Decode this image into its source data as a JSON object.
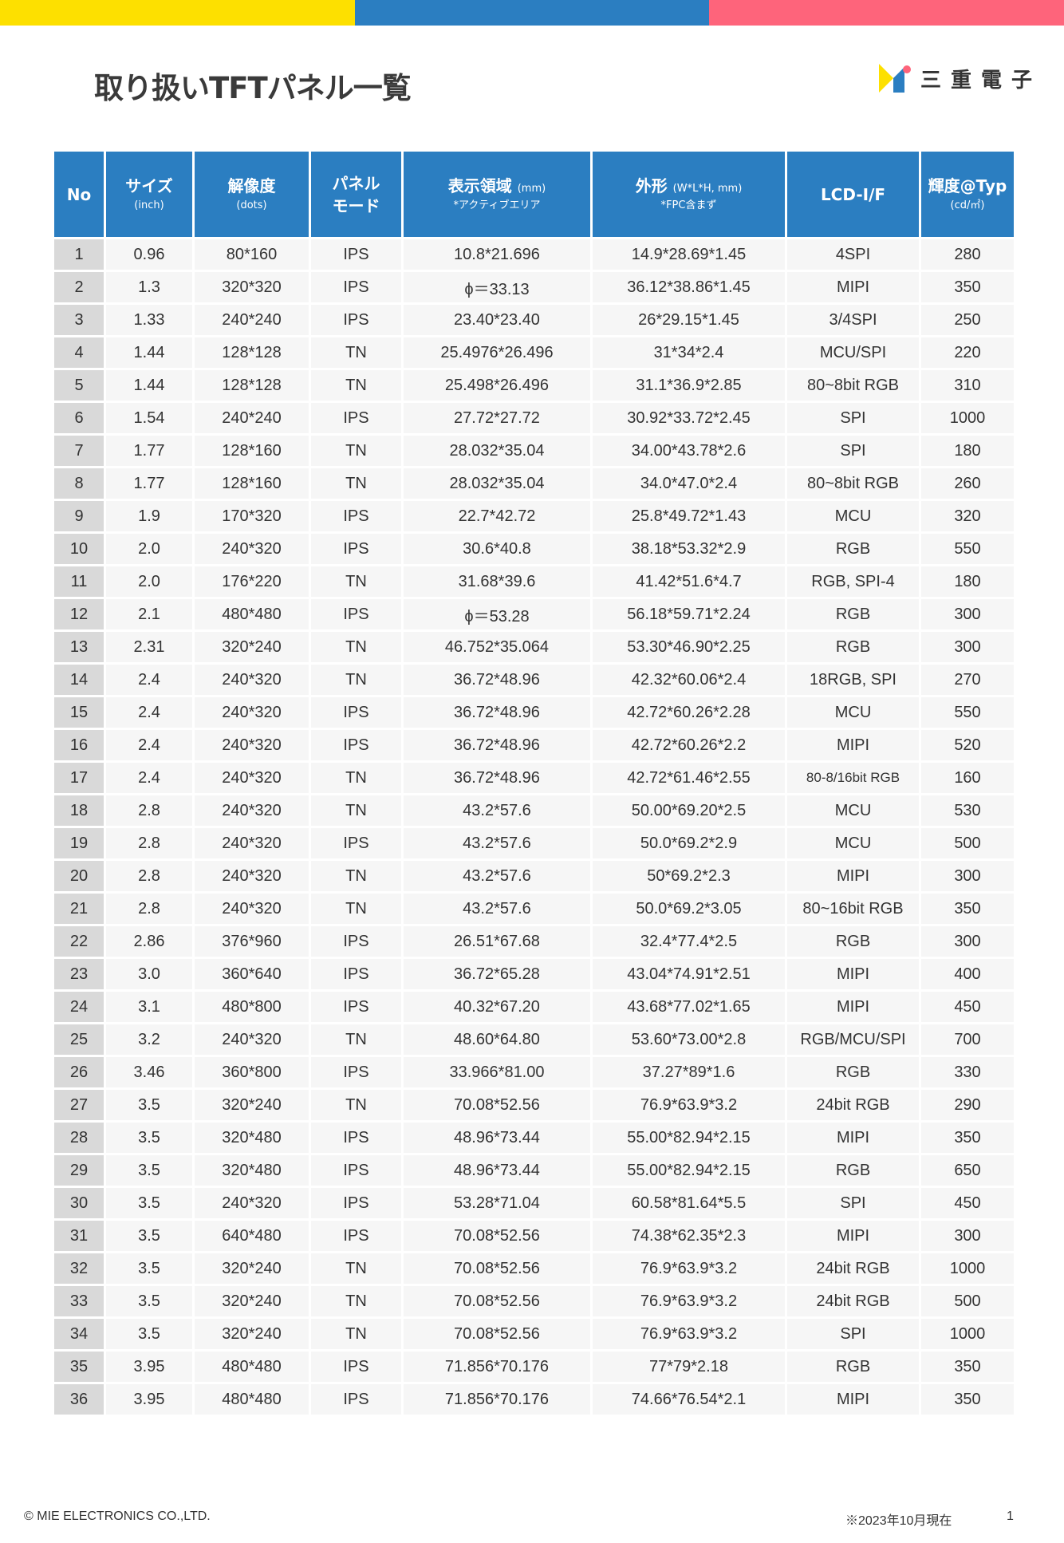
{
  "colors": {
    "yellow": "#fde000",
    "blue": "#2b7ec1",
    "pink": "#fe647b",
    "header_bg": "#2b7ec1",
    "no_col_bg": "#d9d9d9",
    "cell_bg": "#f6f6f6"
  },
  "title": "取り扱いTFTパネル一覧",
  "logo": {
    "text": "三重電子",
    "icon": "mie-logo-icon"
  },
  "table": {
    "headers": [
      {
        "label": "No",
        "sub": ""
      },
      {
        "label": "サイズ",
        "sub": "(inch)"
      },
      {
        "label": "解像度",
        "sub": "(dots)"
      },
      {
        "label": "パネル",
        "sub": "モード"
      },
      {
        "label": "表示領域",
        "unit": "(mm)",
        "sub": "*アクティブエリア"
      },
      {
        "label": "外形",
        "unit": "(W*L*H, mm)",
        "sub": "*FPC含まず"
      },
      {
        "label": "LCD-I/F",
        "sub": ""
      },
      {
        "label": "輝度@Typ",
        "sub": "(cd/㎡)"
      }
    ],
    "rows": [
      [
        "1",
        "0.96",
        "80*160",
        "IPS",
        "10.8*21.696",
        "14.9*28.69*1.45",
        "4SPI",
        "280"
      ],
      [
        "2",
        "1.3",
        "320*320",
        "IPS",
        "ϕ＝33.13",
        "36.12*38.86*1.45",
        "MIPI",
        "350"
      ],
      [
        "3",
        "1.33",
        "240*240",
        "IPS",
        "23.40*23.40",
        "26*29.15*1.45",
        "3/4SPI",
        "250"
      ],
      [
        "4",
        "1.44",
        "128*128",
        "TN",
        "25.4976*26.496",
        "31*34*2.4",
        "MCU/SPI",
        "220"
      ],
      [
        "5",
        "1.44",
        "128*128",
        "TN",
        "25.498*26.496",
        "31.1*36.9*2.85",
        "80~8bit RGB",
        "310"
      ],
      [
        "6",
        "1.54",
        "240*240",
        "IPS",
        "27.72*27.72",
        "30.92*33.72*2.45",
        "SPI",
        "1000"
      ],
      [
        "7",
        "1.77",
        "128*160",
        "TN",
        "28.032*35.04",
        "34.00*43.78*2.6",
        "SPI",
        "180"
      ],
      [
        "8",
        "1.77",
        "128*160",
        "TN",
        "28.032*35.04",
        "34.0*47.0*2.4",
        "80~8bit RGB",
        "260"
      ],
      [
        "9",
        "1.9",
        "170*320",
        "IPS",
        "22.7*42.72",
        "25.8*49.72*1.43",
        "MCU",
        "320"
      ],
      [
        "10",
        "2.0",
        "240*320",
        "IPS",
        "30.6*40.8",
        "38.18*53.32*2.9",
        "RGB",
        "550"
      ],
      [
        "11",
        "2.0",
        "176*220",
        "TN",
        "31.68*39.6",
        "41.42*51.6*4.7",
        "RGB, SPI-4",
        "180"
      ],
      [
        "12",
        "2.1",
        "480*480",
        "IPS",
        "ϕ＝53.28",
        "56.18*59.71*2.24",
        "RGB",
        "300"
      ],
      [
        "13",
        "2.31",
        "320*240",
        "TN",
        "46.752*35.064",
        "53.30*46.90*2.25",
        "RGB",
        "300"
      ],
      [
        "14",
        "2.4",
        "240*320",
        "TN",
        "36.72*48.96",
        "42.32*60.06*2.4",
        "18RGB, SPI",
        "270"
      ],
      [
        "15",
        "2.4",
        "240*320",
        "IPS",
        "36.72*48.96",
        "42.72*60.26*2.28",
        "MCU",
        "550"
      ],
      [
        "16",
        "2.4",
        "240*320",
        "IPS",
        "36.72*48.96",
        "42.72*60.26*2.2",
        "MIPI",
        "520"
      ],
      [
        "17",
        "2.4",
        "240*320",
        "TN",
        "36.72*48.96",
        "42.72*61.46*2.55",
        "80-8/16bit RGB",
        "160"
      ],
      [
        "18",
        "2.8",
        "240*320",
        "TN",
        "43.2*57.6",
        "50.00*69.20*2.5",
        "MCU",
        "530"
      ],
      [
        "19",
        "2.8",
        "240*320",
        "IPS",
        "43.2*57.6",
        "50.0*69.2*2.9",
        "MCU",
        "500"
      ],
      [
        "20",
        "2.8",
        "240*320",
        "TN",
        "43.2*57.6",
        "50*69.2*2.3",
        "MIPI",
        "300"
      ],
      [
        "21",
        "2.8",
        "240*320",
        "TN",
        "43.2*57.6",
        "50.0*69.2*3.05",
        "80~16bit RGB",
        "350"
      ],
      [
        "22",
        "2.86",
        "376*960",
        "IPS",
        "26.51*67.68",
        "32.4*77.4*2.5",
        "RGB",
        "300"
      ],
      [
        "23",
        "3.0",
        "360*640",
        "IPS",
        "36.72*65.28",
        "43.04*74.91*2.51",
        "MIPI",
        "400"
      ],
      [
        "24",
        "3.1",
        "480*800",
        "IPS",
        "40.32*67.20",
        "43.68*77.02*1.65",
        "MIPI",
        "450"
      ],
      [
        "25",
        "3.2",
        "240*320",
        "TN",
        "48.60*64.80",
        "53.60*73.00*2.8",
        "RGB/MCU/SPI",
        "700"
      ],
      [
        "26",
        "3.46",
        "360*800",
        "IPS",
        "33.966*81.00",
        "37.27*89*1.6",
        "RGB",
        "330"
      ],
      [
        "27",
        "3.5",
        "320*240",
        "TN",
        "70.08*52.56",
        "76.9*63.9*3.2",
        "24bit RGB",
        "290"
      ],
      [
        "28",
        "3.5",
        "320*480",
        "IPS",
        "48.96*73.44",
        "55.00*82.94*2.15",
        "MIPI",
        "350"
      ],
      [
        "29",
        "3.5",
        "320*480",
        "IPS",
        "48.96*73.44",
        "55.00*82.94*2.15",
        "RGB",
        "650"
      ],
      [
        "30",
        "3.5",
        "240*320",
        "IPS",
        "53.28*71.04",
        "60.58*81.64*5.5",
        "SPI",
        "450"
      ],
      [
        "31",
        "3.5",
        "640*480",
        "IPS",
        "70.08*52.56",
        "74.38*62.35*2.3",
        "MIPI",
        "300"
      ],
      [
        "32",
        "3.5",
        "320*240",
        "TN",
        "70.08*52.56",
        "76.9*63.9*3.2",
        "24bit RGB",
        "1000"
      ],
      [
        "33",
        "3.5",
        "320*240",
        "TN",
        "70.08*52.56",
        "76.9*63.9*3.2",
        "24bit RGB",
        "500"
      ],
      [
        "34",
        "3.5",
        "320*240",
        "TN",
        "70.08*52.56",
        "76.9*63.9*3.2",
        "SPI",
        "1000"
      ],
      [
        "35",
        "3.95",
        "480*480",
        "IPS",
        "71.856*70.176",
        "77*79*2.18",
        "RGB",
        "350"
      ],
      [
        "36",
        "3.95",
        "480*480",
        "IPS",
        "71.856*70.176",
        "74.66*76.54*2.1",
        "MIPI",
        "350"
      ]
    ]
  },
  "footer": {
    "copyright": "© MIE ELECTRONICS CO.,LTD.",
    "date_note": "※2023年10月現在",
    "page": "1"
  }
}
